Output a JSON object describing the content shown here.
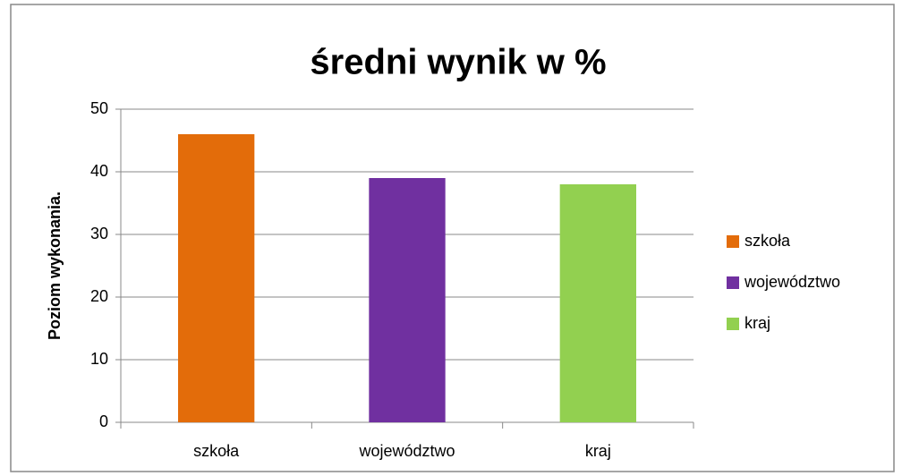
{
  "chart_data": {
    "type": "bar",
    "title": "średni wynik w %",
    "y_label": "Poziom wykonania.",
    "categories": [
      "szkoła",
      "województwo",
      "kraj"
    ],
    "values": [
      46,
      39,
      38
    ],
    "colors": [
      "#e36c0a",
      "#7030a0",
      "#92d050"
    ],
    "ylim": [
      0,
      50
    ],
    "yticks": [
      0,
      10,
      20,
      30,
      40,
      50
    ],
    "grid": true,
    "legend": "right"
  }
}
